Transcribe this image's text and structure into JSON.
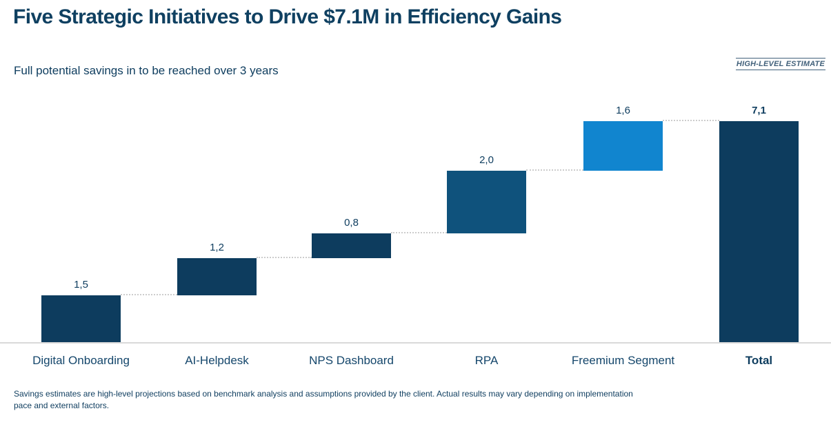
{
  "slide": {
    "title": "Five Strategic Initiatives to Drive $7.1M in Efficiency Gains",
    "subtitle": "Full potential savings in to be reached over 3 years",
    "stamp": "HIGH-LEVEL ESTIMATE",
    "footnote": "Savings estimates are high-level projections based on benchmark analysis and assumptions provided by the client. Actual results may vary depending on implementation pace and external factors."
  },
  "colors": {
    "navy": "#0d3c5e",
    "medium_blue": "#0f527c",
    "bright_blue": "#1185cf",
    "connector_gray": "#cccccc",
    "baseline_gray": "#d9d9d9",
    "stamp_blue": "#41607a"
  },
  "chart_data": {
    "type": "bar",
    "subtype": "waterfall",
    "title": "Five Strategic Initiatives to Drive $7.1M in Efficiency Gains",
    "subtitle": "Full potential savings in to be reached over 3 years",
    "categories": [
      "Digital Onboarding",
      "AI-Helpdesk",
      "NPS Dashboard",
      "RPA",
      "Freemium Segment",
      "Total"
    ],
    "values": [
      1.5,
      1.2,
      0.8,
      2.0,
      1.6,
      7.1
    ],
    "value_labels": [
      "1,5",
      "1,2",
      "0,8",
      "2,0",
      "1,6",
      "7,1"
    ],
    "cumulative_start": [
      0,
      1.5,
      2.7,
      3.5,
      5.5,
      0
    ],
    "is_total": [
      false,
      false,
      false,
      false,
      false,
      true
    ],
    "bar_colors": [
      "#0d3c5e",
      "#0d3c5e",
      "#0d3c5e",
      "#0f527c",
      "#1185cf",
      "#0d3c5e"
    ],
    "xlabel": "",
    "ylabel": "",
    "ylim": [
      0,
      7.1
    ],
    "grid": false,
    "legend": false,
    "connectors": "dotted",
    "baseline_visible": true
  }
}
